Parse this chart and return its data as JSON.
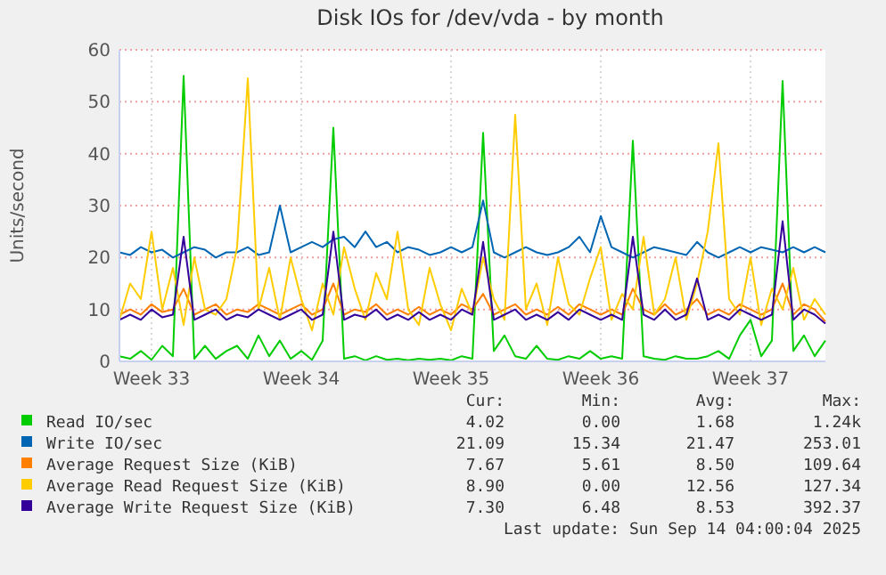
{
  "chart_data": {
    "type": "line",
    "title": "Disk IOs for /dev/vda - by month",
    "ylabel": "Units/second",
    "categories": [
      null,
      null,
      null,
      "Week 33",
      null,
      null,
      null,
      null,
      null,
      null,
      null,
      null,
      null,
      null,
      null,
      null,
      null,
      "Week 34",
      null,
      null,
      null,
      null,
      null,
      null,
      null,
      null,
      null,
      null,
      null,
      null,
      null,
      "Week 35",
      null,
      null,
      null,
      null,
      null,
      null,
      null,
      null,
      null,
      null,
      null,
      null,
      null,
      "Week 36",
      null,
      null,
      null,
      null,
      null,
      null,
      null,
      null,
      null,
      null,
      null,
      null,
      null,
      "Week 37",
      null,
      null,
      null,
      null,
      null,
      null,
      null
    ],
    "ylim": [
      0,
      60
    ],
    "yticks": [
      0,
      10,
      20,
      30,
      40,
      50,
      60
    ],
    "grid": true,
    "legend": "bottom",
    "series": [
      {
        "name": "Read IO/sec",
        "color": "#00cc00",
        "values": [
          1,
          0.5,
          2,
          0.3,
          3,
          1,
          55,
          0.5,
          3,
          0.5,
          2,
          3,
          0.5,
          5,
          1,
          4,
          0.5,
          2,
          0.3,
          4,
          45,
          0.5,
          1,
          0.2,
          1,
          0.3,
          0.5,
          0.2,
          0.5,
          0.3,
          0.5,
          0.2,
          1,
          0.5,
          44,
          2,
          5,
          1,
          0.5,
          3,
          0.5,
          0.3,
          1,
          0.5,
          2,
          0.5,
          1,
          0.5,
          42.5,
          1,
          0.5,
          0.3,
          1,
          0.5,
          0.5,
          1,
          2,
          0.5,
          5,
          8,
          1,
          4,
          54,
          2,
          5,
          1,
          4
        ]
      },
      {
        "name": "Write IO/sec",
        "color": "#0066b3",
        "values": [
          21,
          20.5,
          22,
          21,
          21.5,
          20,
          21,
          22,
          21.5,
          20,
          21,
          21,
          22,
          20.5,
          21,
          30,
          21,
          22,
          23,
          22,
          23.5,
          24,
          22,
          25,
          22,
          23,
          21,
          22,
          21.5,
          20.5,
          21,
          22,
          21,
          22,
          31,
          21,
          20,
          21,
          22,
          21,
          20.5,
          21,
          22,
          24,
          21,
          28,
          22,
          21,
          20,
          21,
          22,
          21.5,
          21,
          20.5,
          23,
          21,
          20,
          21,
          22,
          21,
          22,
          21.5,
          21,
          22,
          21,
          22,
          21
        ]
      },
      {
        "name": "Average Request Size (KiB)",
        "color": "#ff8000",
        "values": [
          9,
          10,
          9,
          11,
          9.5,
          10,
          14,
          9,
          10,
          11,
          9,
          10,
          9.5,
          11,
          10,
          9,
          10,
          11,
          9,
          10,
          15,
          9,
          10,
          9.5,
          11,
          9,
          10,
          9,
          10.5,
          9,
          10,
          9,
          11,
          10,
          13,
          9,
          10,
          11,
          9,
          10,
          9,
          10.5,
          9,
          11,
          10,
          9,
          10,
          9,
          14,
          10,
          9,
          11,
          9,
          10,
          12,
          9,
          10,
          9,
          11,
          10,
          9,
          10,
          15,
          9,
          11,
          10,
          7.7
        ]
      },
      {
        "name": "Average Read Request Size (KiB)",
        "color": "#ffcc00",
        "values": [
          8,
          15,
          12,
          25,
          10,
          18,
          7,
          20,
          10,
          9,
          12,
          22,
          54.5,
          10,
          18,
          8,
          20,
          12,
          6,
          15,
          9,
          22,
          14,
          8,
          17,
          12,
          25,
          10,
          7,
          18,
          11,
          6,
          14,
          9,
          20,
          12,
          8,
          47.5,
          10,
          15,
          7,
          20,
          11,
          9,
          16,
          22,
          8,
          13,
          10,
          24,
          9,
          12,
          20,
          8,
          15,
          25,
          42,
          12,
          9,
          20,
          7,
          14,
          10,
          18,
          8,
          12,
          9
        ]
      },
      {
        "name": "Average Write Request Size (KiB)",
        "color": "#330099",
        "values": [
          8,
          9,
          8,
          10,
          8.5,
          9,
          24,
          8,
          9,
          10,
          8,
          9,
          8.5,
          10,
          9,
          8,
          9,
          10,
          8,
          9,
          25,
          8,
          9,
          8.5,
          10,
          8,
          9,
          8,
          9.5,
          8,
          9,
          8,
          10,
          9,
          23,
          8,
          9,
          10,
          8,
          9,
          8,
          9.5,
          8,
          10,
          9,
          8,
          9,
          8,
          24,
          9,
          8,
          10,
          8,
          9,
          16,
          8,
          9,
          8,
          10,
          9,
          8,
          9,
          27,
          8,
          10,
          9,
          7.3
        ]
      }
    ],
    "annotations": [
      "Cur:",
      "Min:",
      "Avg:",
      "Max:",
      "4.02",
      "0.00",
      "1.68",
      "1.24k",
      "21.09",
      "15.34",
      "21.47",
      "253.01",
      "7.67",
      "5.61",
      "8.50",
      "109.64",
      "8.90",
      "0.00",
      "12.56",
      "127.34",
      "7.30",
      "6.48",
      "8.53",
      "392.37",
      "Last update: Sun Sep 14 04:00:04 2025"
    ]
  }
}
